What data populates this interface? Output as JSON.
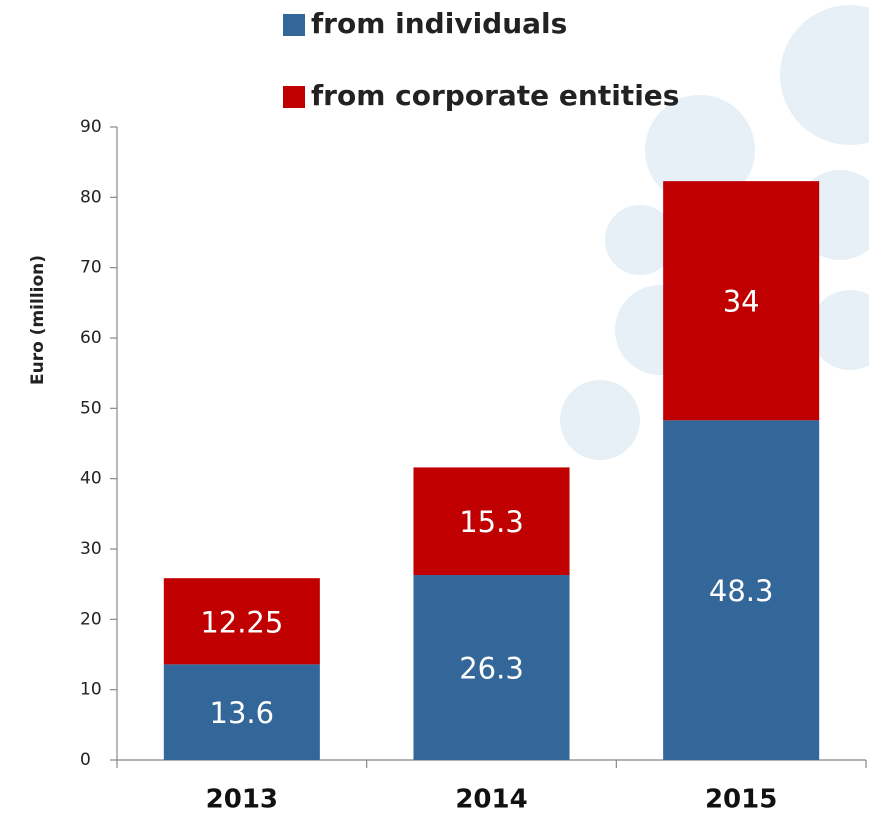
{
  "chart_data": {
    "type": "stacked_bar",
    "y_label": "Euro (million)",
    "categories": [
      "2013",
      "2014",
      "2015"
    ],
    "series": [
      {
        "name": "from individuals",
        "color": "#336699",
        "values": [
          13.6,
          26.3,
          48.3
        ]
      },
      {
        "name": "from corporate entities",
        "color": "#c00000",
        "values": [
          12.25,
          15.3,
          34
        ]
      }
    ],
    "ylim": [
      0,
      90
    ],
    "yticks": [
      0,
      10,
      20,
      30,
      40,
      50,
      60,
      70,
      80,
      90
    ]
  }
}
